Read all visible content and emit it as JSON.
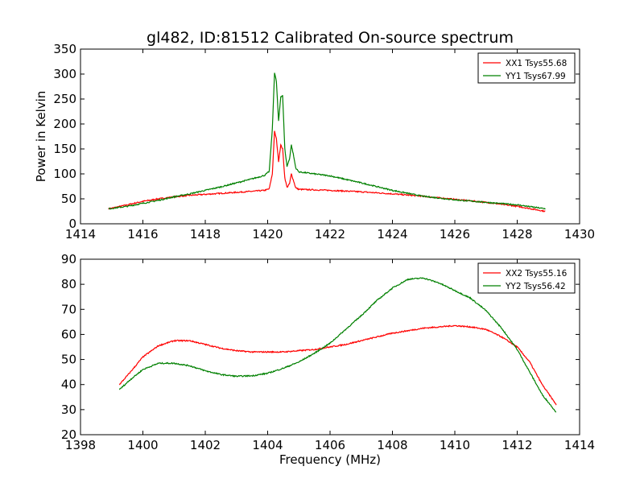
{
  "title": "gl482, ID:81512 Calibrated On-source spectrum",
  "colors": {
    "xx": "#ff0000",
    "yy": "#008000"
  },
  "chart_data": [
    {
      "type": "line",
      "xlabel": "",
      "ylabel": "Power in Kelvin",
      "xlim": [
        1414,
        1430
      ],
      "ylim": [
        0,
        350
      ],
      "xticks": [
        1414,
        1416,
        1418,
        1420,
        1422,
        1424,
        1426,
        1428,
        1430
      ],
      "yticks": [
        0,
        50,
        100,
        150,
        200,
        250,
        300,
        350
      ],
      "legend_position": "top-right",
      "series": [
        {
          "name": "XX1 Tsys55.68",
          "color": "#ff0000",
          "points": [
            [
              1414.9,
              30
            ],
            [
              1415.5,
              38
            ],
            [
              1416,
              45
            ],
            [
              1416.5,
              50
            ],
            [
              1417,
              54
            ],
            [
              1417.5,
              57
            ],
            [
              1418,
              59
            ],
            [
              1418.5,
              61
            ],
            [
              1419,
              63
            ],
            [
              1419.5,
              65
            ],
            [
              1419.9,
              67
            ],
            [
              1420.05,
              70
            ],
            [
              1420.15,
              100
            ],
            [
              1420.22,
              185
            ],
            [
              1420.28,
              170
            ],
            [
              1420.35,
              125
            ],
            [
              1420.42,
              158
            ],
            [
              1420.48,
              150
            ],
            [
              1420.55,
              92
            ],
            [
              1420.62,
              73
            ],
            [
              1420.7,
              80
            ],
            [
              1420.76,
              100
            ],
            [
              1420.82,
              88
            ],
            [
              1420.9,
              72
            ],
            [
              1421,
              69
            ],
            [
              1421.5,
              68
            ],
            [
              1422,
              67
            ],
            [
              1423,
              64
            ],
            [
              1424,
              60
            ],
            [
              1425,
              55
            ],
            [
              1426,
              49
            ],
            [
              1427,
              43
            ],
            [
              1428,
              35
            ],
            [
              1428.9,
              25
            ]
          ]
        },
        {
          "name": "YY1 Tsys67.99",
          "color": "#008000",
          "points": [
            [
              1414.9,
              30
            ],
            [
              1415.5,
              35
            ],
            [
              1416,
              41
            ],
            [
              1416.5,
              47
            ],
            [
              1417,
              54
            ],
            [
              1417.5,
              60
            ],
            [
              1418,
              67
            ],
            [
              1418.5,
              74
            ],
            [
              1419,
              82
            ],
            [
              1419.5,
              90
            ],
            [
              1419.9,
              97
            ],
            [
              1420.05,
              105
            ],
            [
              1420.15,
              190
            ],
            [
              1420.22,
              303
            ],
            [
              1420.28,
              285
            ],
            [
              1420.35,
              205
            ],
            [
              1420.42,
              255
            ],
            [
              1420.48,
              257
            ],
            [
              1420.55,
              150
            ],
            [
              1420.62,
              115
            ],
            [
              1420.7,
              130
            ],
            [
              1420.76,
              158
            ],
            [
              1420.82,
              140
            ],
            [
              1420.9,
              112
            ],
            [
              1421,
              104
            ],
            [
              1421.5,
              100
            ],
            [
              1422,
              96
            ],
            [
              1423,
              82
            ],
            [
              1424,
              67
            ],
            [
              1425,
              55
            ],
            [
              1426,
              48
            ],
            [
              1427,
              43
            ],
            [
              1428,
              38
            ],
            [
              1428.9,
              30
            ]
          ]
        }
      ]
    },
    {
      "type": "line",
      "xlabel": "Frequency (MHz)",
      "ylabel": "",
      "xlim": [
        1398,
        1414
      ],
      "ylim": [
        20,
        90
      ],
      "xticks": [
        1398,
        1400,
        1402,
        1404,
        1406,
        1408,
        1410,
        1412,
        1414
      ],
      "yticks": [
        20,
        30,
        40,
        50,
        60,
        70,
        80,
        90
      ],
      "legend_position": "top-right",
      "series": [
        {
          "name": "XX2 Tsys55.16",
          "color": "#ff0000",
          "points": [
            [
              1399.25,
              40
            ],
            [
              1399.6,
              45
            ],
            [
              1400,
              51
            ],
            [
              1400.5,
              55.5
            ],
            [
              1401,
              57.5
            ],
            [
              1401.5,
              57.5
            ],
            [
              1402,
              56
            ],
            [
              1402.5,
              54.5
            ],
            [
              1403,
              53.5
            ],
            [
              1403.5,
              53
            ],
            [
              1404,
              53
            ],
            [
              1404.5,
              53
            ],
            [
              1405,
              53.5
            ],
            [
              1405.5,
              54
            ],
            [
              1406,
              55
            ],
            [
              1406.5,
              56
            ],
            [
              1407,
              57.5
            ],
            [
              1407.5,
              59
            ],
            [
              1408,
              60.5
            ],
            [
              1408.5,
              61.5
            ],
            [
              1409,
              62.5
            ],
            [
              1409.5,
              63
            ],
            [
              1410,
              63.5
            ],
            [
              1410.5,
              63
            ],
            [
              1411,
              62
            ],
            [
              1411.5,
              59
            ],
            [
              1412,
              55
            ],
            [
              1412.4,
              49
            ],
            [
              1412.8,
              40
            ],
            [
              1413.25,
              32
            ]
          ]
        },
        {
          "name": "YY2 Tsys56.42",
          "color": "#008000",
          "points": [
            [
              1399.25,
              38
            ],
            [
              1399.6,
              42
            ],
            [
              1400,
              46
            ],
            [
              1400.5,
              48.5
            ],
            [
              1401,
              48.5
            ],
            [
              1401.5,
              47.5
            ],
            [
              1402,
              45.5
            ],
            [
              1402.5,
              44
            ],
            [
              1403,
              43.3
            ],
            [
              1403.5,
              43.5
            ],
            [
              1404,
              44.5
            ],
            [
              1404.5,
              46.5
            ],
            [
              1405,
              49
            ],
            [
              1405.5,
              52.5
            ],
            [
              1406,
              56.5
            ],
            [
              1406.5,
              62
            ],
            [
              1407,
              67.5
            ],
            [
              1407.5,
              73.5
            ],
            [
              1408,
              78.5
            ],
            [
              1408.5,
              82
            ],
            [
              1409,
              82.5
            ],
            [
              1409.5,
              80.5
            ],
            [
              1410,
              77.5
            ],
            [
              1410.5,
              74.5
            ],
            [
              1411,
              69.5
            ],
            [
              1411.5,
              62.5
            ],
            [
              1412,
              54
            ],
            [
              1412.4,
              45
            ],
            [
              1412.8,
              36
            ],
            [
              1413.25,
              29
            ]
          ]
        }
      ]
    }
  ]
}
